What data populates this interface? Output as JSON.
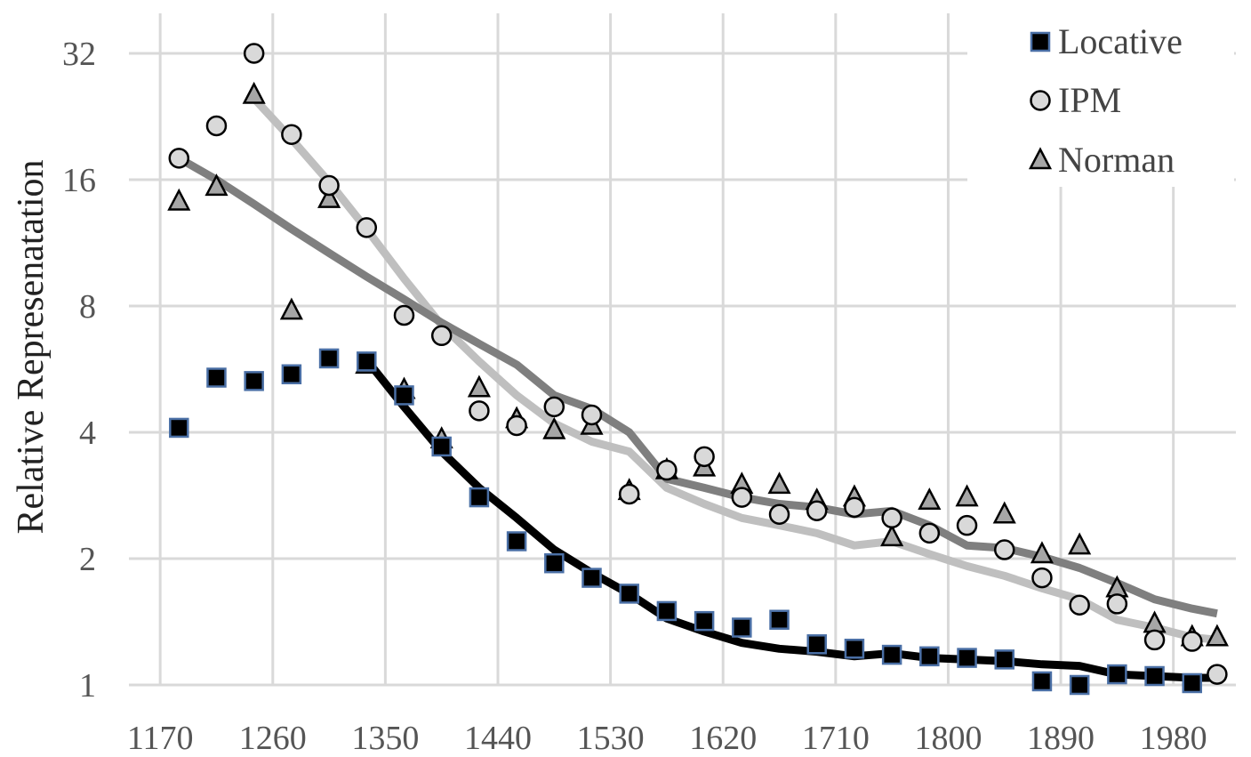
{
  "chart_data": {
    "type": "scatter",
    "title": "",
    "xlabel": "",
    "ylabel": "Relative Represenatation",
    "x_ticks": [
      1170,
      1260,
      1350,
      1440,
      1530,
      1620,
      1710,
      1800,
      1890,
      1980
    ],
    "y_ticks": [
      1,
      2,
      4,
      8,
      16,
      32
    ],
    "y_scale": "log2",
    "xlim": [
      1145,
      2030
    ],
    "ylim": [
      1,
      45
    ],
    "grid": true,
    "legend_position": "top-right",
    "colors": {
      "grid": "#d9d9d9",
      "locative_fill": "#000000",
      "locative_stroke": "#4a6fa5",
      "locative_trend": "#000000",
      "ipm_fill": "#d9d9d9",
      "ipm_trend": "#bfbfbf",
      "norman_fill": "#a6a6a6",
      "norman_trend": "#7f7f7f"
    },
    "series": [
      {
        "name": "Locative",
        "marker": "square",
        "points": [
          [
            1185,
            4.1
          ],
          [
            1215,
            5.4
          ],
          [
            1245,
            5.3
          ],
          [
            1275,
            5.5
          ],
          [
            1305,
            6.0
          ],
          [
            1335,
            5.9
          ],
          [
            1365,
            4.9
          ],
          [
            1395,
            3.7
          ],
          [
            1425,
            2.8
          ],
          [
            1455,
            2.2
          ],
          [
            1485,
            1.95
          ],
          [
            1515,
            1.8
          ],
          [
            1545,
            1.65
          ],
          [
            1575,
            1.5
          ],
          [
            1605,
            1.42
          ],
          [
            1635,
            1.37
          ],
          [
            1665,
            1.43
          ],
          [
            1695,
            1.25
          ],
          [
            1725,
            1.22
          ],
          [
            1755,
            1.18
          ],
          [
            1785,
            1.17
          ],
          [
            1815,
            1.16
          ],
          [
            1845,
            1.15
          ],
          [
            1875,
            1.02
          ],
          [
            1905,
            1.0
          ],
          [
            1935,
            1.06
          ],
          [
            1965,
            1.05
          ],
          [
            1995,
            1.01
          ]
        ],
        "trend": [
          [
            1335,
            5.95
          ],
          [
            1365,
            4.6
          ],
          [
            1395,
            3.6
          ],
          [
            1425,
            2.95
          ],
          [
            1455,
            2.5
          ],
          [
            1485,
            2.1
          ],
          [
            1515,
            1.85
          ],
          [
            1545,
            1.65
          ],
          [
            1575,
            1.44
          ],
          [
            1605,
            1.34
          ],
          [
            1635,
            1.26
          ],
          [
            1665,
            1.22
          ],
          [
            1695,
            1.2
          ],
          [
            1725,
            1.17
          ],
          [
            1755,
            1.19
          ],
          [
            1785,
            1.16
          ],
          [
            1815,
            1.15
          ],
          [
            1845,
            1.14
          ],
          [
            1875,
            1.12
          ],
          [
            1905,
            1.11
          ],
          [
            1935,
            1.06
          ],
          [
            1965,
            1.05
          ],
          [
            1995,
            1.04
          ],
          [
            2015,
            1.04
          ]
        ]
      },
      {
        "name": "IPM",
        "marker": "circle",
        "points": [
          [
            1185,
            18.0
          ],
          [
            1215,
            21.5
          ],
          [
            1245,
            32.0
          ],
          [
            1275,
            20.5
          ],
          [
            1305,
            15.5
          ],
          [
            1335,
            12.3
          ],
          [
            1365,
            7.6
          ],
          [
            1395,
            6.8
          ],
          [
            1425,
            4.5
          ],
          [
            1455,
            4.15
          ],
          [
            1485,
            4.6
          ],
          [
            1515,
            4.4
          ],
          [
            1545,
            2.85
          ],
          [
            1575,
            3.25
          ],
          [
            1605,
            3.5
          ],
          [
            1635,
            2.8
          ],
          [
            1665,
            2.55
          ],
          [
            1695,
            2.6
          ],
          [
            1725,
            2.65
          ],
          [
            1755,
            2.5
          ],
          [
            1785,
            2.3
          ],
          [
            1815,
            2.4
          ],
          [
            1845,
            2.1
          ],
          [
            1875,
            1.8
          ],
          [
            1905,
            1.55
          ],
          [
            1935,
            1.56
          ],
          [
            1965,
            1.28
          ],
          [
            1995,
            1.27
          ],
          [
            2015,
            1.06
          ]
        ],
        "trend": [
          [
            1245,
            25.0
          ],
          [
            1275,
            20.0
          ],
          [
            1305,
            15.8
          ],
          [
            1335,
            12.2
          ],
          [
            1365,
            9.3
          ],
          [
            1395,
            7.2
          ],
          [
            1425,
            5.9
          ],
          [
            1455,
            4.9
          ],
          [
            1485,
            4.2
          ],
          [
            1515,
            3.8
          ],
          [
            1545,
            3.6
          ],
          [
            1575,
            2.95
          ],
          [
            1605,
            2.7
          ],
          [
            1635,
            2.5
          ],
          [
            1665,
            2.4
          ],
          [
            1695,
            2.3
          ],
          [
            1725,
            2.15
          ],
          [
            1755,
            2.2
          ],
          [
            1785,
            2.05
          ],
          [
            1815,
            1.92
          ],
          [
            1845,
            1.82
          ],
          [
            1875,
            1.7
          ],
          [
            1905,
            1.6
          ],
          [
            1935,
            1.43
          ],
          [
            1965,
            1.37
          ],
          [
            1995,
            1.3
          ],
          [
            2015,
            1.28
          ]
        ]
      },
      {
        "name": "Norman",
        "marker": "triangle",
        "points": [
          [
            1185,
            14.2
          ],
          [
            1215,
            15.4
          ],
          [
            1245,
            25.5
          ],
          [
            1275,
            7.8
          ],
          [
            1305,
            14.4
          ],
          [
            1335,
            5.8
          ],
          [
            1365,
            5.05
          ],
          [
            1395,
            3.85
          ],
          [
            1425,
            5.1
          ],
          [
            1455,
            4.3
          ],
          [
            1485,
            4.05
          ],
          [
            1515,
            4.15
          ],
          [
            1545,
            2.9
          ],
          [
            1575,
            3.25
          ],
          [
            1605,
            3.3
          ],
          [
            1635,
            3.0
          ],
          [
            1665,
            3.0
          ],
          [
            1695,
            2.75
          ],
          [
            1725,
            2.8
          ],
          [
            1755,
            2.25
          ],
          [
            1785,
            2.75
          ],
          [
            1815,
            2.8
          ],
          [
            1845,
            2.55
          ],
          [
            1875,
            2.05
          ],
          [
            1905,
            2.15
          ],
          [
            1935,
            1.7
          ],
          [
            1965,
            1.4
          ],
          [
            1995,
            1.3
          ],
          [
            2015,
            1.3
          ]
        ],
        "trend": [
          [
            1185,
            18.0
          ],
          [
            1215,
            16.0
          ],
          [
            1245,
            14.0
          ],
          [
            1275,
            12.2
          ],
          [
            1305,
            10.7
          ],
          [
            1335,
            9.4
          ],
          [
            1365,
            8.3
          ],
          [
            1395,
            7.3
          ],
          [
            1425,
            6.5
          ],
          [
            1455,
            5.8
          ],
          [
            1485,
            4.9
          ],
          [
            1515,
            4.55
          ],
          [
            1545,
            4.0
          ],
          [
            1575,
            3.1
          ],
          [
            1605,
            2.95
          ],
          [
            1635,
            2.8
          ],
          [
            1665,
            2.7
          ],
          [
            1695,
            2.65
          ],
          [
            1725,
            2.55
          ],
          [
            1755,
            2.6
          ],
          [
            1785,
            2.4
          ],
          [
            1815,
            2.15
          ],
          [
            1845,
            2.12
          ],
          [
            1875,
            2.02
          ],
          [
            1905,
            1.9
          ],
          [
            1935,
            1.75
          ],
          [
            1965,
            1.6
          ],
          [
            1995,
            1.52
          ],
          [
            2015,
            1.48
          ]
        ]
      }
    ]
  }
}
